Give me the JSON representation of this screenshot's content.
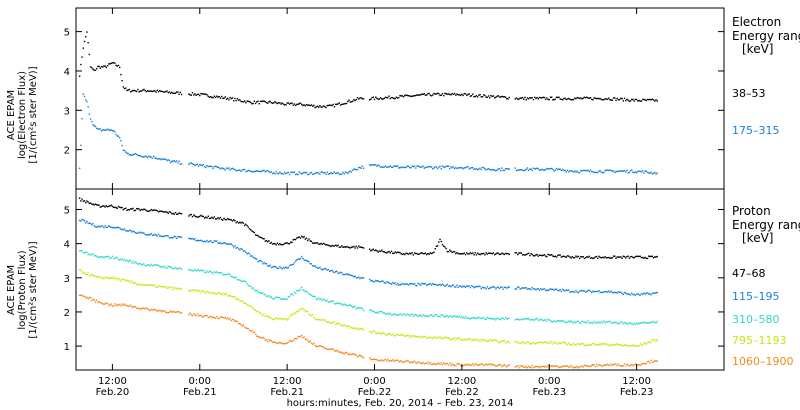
{
  "chart_data": [
    {
      "id": "electron",
      "type": "scatter",
      "ylabel_lines": [
        "ACE EPAM",
        "log(Electron Flux)",
        "[1/(cm²s ster MeV)]"
      ],
      "ylim": [
        1.0,
        5.6
      ],
      "yticks": [
        2,
        3,
        4,
        5
      ],
      "legend_title_lines": [
        "Electron",
        "Energy range",
        "[keV]"
      ],
      "series": [
        {
          "name": "38–53",
          "color": "#000000",
          "x": [
            7.5,
            8,
            8.5,
            9,
            9.5,
            10,
            11,
            12,
            13,
            13.5,
            14,
            15,
            17,
            20,
            24,
            28,
            31,
            34,
            36,
            38,
            40,
            42,
            44,
            46,
            48,
            52,
            56,
            60,
            64,
            68,
            72,
            76,
            80,
            84,
            87
          ],
          "y": [
            3.9,
            4.6,
            5.0,
            4.1,
            4.0,
            4.1,
            4.1,
            4.2,
            4.1,
            3.6,
            3.5,
            3.5,
            3.5,
            3.45,
            3.4,
            3.3,
            3.2,
            3.2,
            3.15,
            3.15,
            3.1,
            3.1,
            3.2,
            3.3,
            3.3,
            3.35,
            3.4,
            3.4,
            3.35,
            3.3,
            3.3,
            3.3,
            3.3,
            3.25,
            3.25
          ]
        },
        {
          "name": "175–315",
          "color": "#1a7fd8",
          "x": [
            7.5,
            8,
            8.5,
            9,
            9.5,
            10,
            11,
            12,
            13,
            13.5,
            14,
            16,
            18,
            20,
            24,
            28,
            32,
            36,
            40,
            44,
            46,
            48,
            52,
            56,
            60,
            64,
            68,
            72,
            76,
            80,
            84,
            87
          ],
          "y": [
            1.5,
            3.4,
            3.2,
            2.8,
            2.6,
            2.5,
            2.5,
            2.5,
            2.3,
            2.0,
            1.9,
            1.85,
            1.8,
            1.7,
            1.6,
            1.5,
            1.45,
            1.4,
            1.4,
            1.4,
            1.55,
            1.6,
            1.55,
            1.55,
            1.55,
            1.5,
            1.5,
            1.5,
            1.45,
            1.45,
            1.45,
            1.4
          ]
        }
      ]
    },
    {
      "id": "proton",
      "type": "scatter",
      "ylabel_lines": [
        "ACE EPAM",
        "log(Proton Flux)",
        "[1/(cm²s ster MeV)]"
      ],
      "ylim": [
        0.3,
        5.6
      ],
      "yticks": [
        1,
        2,
        3,
        4,
        5
      ],
      "legend_title_lines": [
        "Proton",
        "Energy range",
        "[keV]"
      ],
      "series": [
        {
          "name": "47–68",
          "color": "#000000",
          "x": [
            7.5,
            10,
            12,
            14,
            16,
            20,
            24,
            28,
            30,
            32,
            34,
            36,
            38,
            40,
            44,
            46,
            48,
            52,
            56,
            57,
            58,
            60,
            64,
            68,
            72,
            76,
            80,
            84,
            87
          ],
          "y": [
            5.3,
            5.1,
            5.1,
            5.0,
            5.0,
            4.9,
            4.8,
            4.7,
            4.6,
            4.2,
            4.0,
            4.0,
            4.2,
            4.0,
            3.9,
            3.9,
            3.8,
            3.7,
            3.7,
            4.1,
            3.8,
            3.7,
            3.7,
            3.7,
            3.65,
            3.6,
            3.6,
            3.6,
            3.6
          ]
        },
        {
          "name": "115–195",
          "color": "#1a7fd8",
          "x": [
            7.5,
            10,
            12,
            14,
            16,
            20,
            24,
            28,
            30,
            32,
            34,
            36,
            38,
            40,
            44,
            46,
            48,
            52,
            56,
            60,
            64,
            68,
            72,
            76,
            80,
            84,
            87
          ],
          "y": [
            4.7,
            4.5,
            4.5,
            4.4,
            4.3,
            4.2,
            4.1,
            4.0,
            3.8,
            3.5,
            3.3,
            3.3,
            3.6,
            3.3,
            3.1,
            3.0,
            2.9,
            2.8,
            2.8,
            2.75,
            2.7,
            2.7,
            2.65,
            2.6,
            2.6,
            2.5,
            2.55
          ]
        },
        {
          "name": "310–580",
          "color": "#33d8c8",
          "x": [
            7.5,
            10,
            12,
            14,
            16,
            20,
            24,
            28,
            30,
            32,
            34,
            36,
            38,
            40,
            44,
            46,
            48,
            52,
            56,
            60,
            64,
            68,
            72,
            76,
            80,
            84,
            87
          ],
          "y": [
            3.8,
            3.6,
            3.6,
            3.5,
            3.4,
            3.3,
            3.2,
            3.1,
            2.9,
            2.6,
            2.4,
            2.4,
            2.7,
            2.4,
            2.2,
            2.1,
            2.0,
            1.9,
            1.9,
            1.85,
            1.8,
            1.8,
            1.75,
            1.7,
            1.7,
            1.65,
            1.7
          ]
        },
        {
          "name": "795–1193",
          "color": "#c8e61a",
          "x": [
            7.5,
            10,
            12,
            14,
            16,
            20,
            24,
            28,
            30,
            32,
            34,
            36,
            38,
            40,
            44,
            46,
            48,
            52,
            56,
            60,
            64,
            68,
            72,
            76,
            80,
            84,
            87
          ],
          "y": [
            3.2,
            3.0,
            3.0,
            2.9,
            2.8,
            2.7,
            2.6,
            2.5,
            2.3,
            2.0,
            1.8,
            1.8,
            2.1,
            1.8,
            1.6,
            1.5,
            1.4,
            1.3,
            1.25,
            1.2,
            1.15,
            1.1,
            1.1,
            1.05,
            1.05,
            1.0,
            1.2
          ]
        },
        {
          "name": "1060–1900",
          "color": "#f28a1e",
          "x": [
            7.5,
            10,
            12,
            14,
            16,
            20,
            24,
            28,
            30,
            32,
            34,
            36,
            38,
            40,
            44,
            46,
            48,
            52,
            56,
            60,
            64,
            68,
            72,
            76,
            80,
            84,
            87
          ],
          "y": [
            2.5,
            2.3,
            2.2,
            2.2,
            2.1,
            2.0,
            1.9,
            1.8,
            1.6,
            1.3,
            1.1,
            1.1,
            1.3,
            1.0,
            0.8,
            0.7,
            0.6,
            0.55,
            0.5,
            0.45,
            0.45,
            0.4,
            0.4,
            0.4,
            0.45,
            0.45,
            0.6
          ]
        }
      ]
    }
  ],
  "x_axis": {
    "ticks": [
      {
        "hour": 12,
        "time": "12:00",
        "date": "Feb.20"
      },
      {
        "hour": 24,
        "time": "0:00",
        "date": "Feb.21"
      },
      {
        "hour": 36,
        "time": "12:00",
        "date": "Feb.21"
      },
      {
        "hour": 48,
        "time": "0:00",
        "date": "Feb.22"
      },
      {
        "hour": 60,
        "time": "12:00",
        "date": "Feb.22"
      },
      {
        "hour": 72,
        "time": "0:00",
        "date": "Feb.23"
      },
      {
        "hour": 84,
        "time": "12:00",
        "date": "Feb.23"
      }
    ],
    "xlim": [
      7,
      96
    ],
    "xlabel": "hours:minutes, Feb. 20, 2014 – Feb. 23, 2014"
  }
}
